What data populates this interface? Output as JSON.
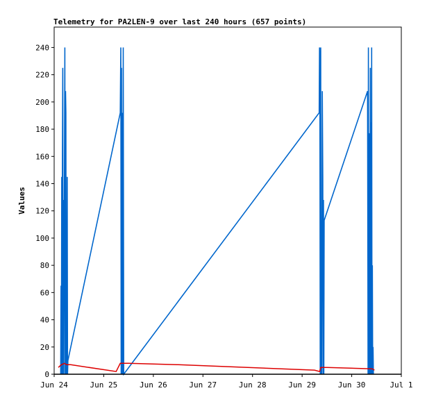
{
  "chart_data": {
    "type": "line",
    "title": "Telemetry for PA2LEN-9 over last 240 hours (657 points)",
    "xlabel": "",
    "ylabel": "Values",
    "ylim": [
      0,
      255
    ],
    "yticks": [
      0,
      20,
      40,
      60,
      80,
      100,
      120,
      140,
      160,
      180,
      200,
      220,
      240
    ],
    "xlim": [
      "2024-06-24T00:00",
      "2024-07-01T00:00"
    ],
    "xticks": [
      {
        "x": "2024-06-24T00:00",
        "label": "Jun 24"
      },
      {
        "x": "2024-06-25T00:00",
        "label": "Jun 25"
      },
      {
        "x": "2024-06-26T00:00",
        "label": "Jun 26"
      },
      {
        "x": "2024-06-27T00:00",
        "label": "Jun 27"
      },
      {
        "x": "2024-06-28T00:00",
        "label": "Jun 28"
      },
      {
        "x": "2024-06-29T00:00",
        "label": "Jun 29"
      },
      {
        "x": "2024-06-30T00:00",
        "label": "Jun 30"
      },
      {
        "x": "2024-07-01T00:00",
        "label": "Jul 1"
      }
    ],
    "grid": false,
    "legend": "none",
    "series": [
      {
        "color": "#0066cc",
        "points": [
          [
            "2024-06-24T03:10",
            0
          ],
          [
            "2024-06-24T03:20",
            65
          ],
          [
            "2024-06-24T03:30",
            0
          ],
          [
            "2024-06-24T03:40",
            145
          ],
          [
            "2024-06-24T03:50",
            0
          ],
          [
            "2024-06-24T04:00",
            160
          ],
          [
            "2024-06-24T04:10",
            225
          ],
          [
            "2024-06-24T04:20",
            0
          ],
          [
            "2024-06-24T04:30",
            128
          ],
          [
            "2024-06-24T04:40",
            0
          ],
          [
            "2024-06-24T05:10",
            240
          ],
          [
            "2024-06-24T05:20",
            0
          ],
          [
            "2024-06-24T05:30",
            208
          ],
          [
            "2024-06-24T05:40",
            192
          ],
          [
            "2024-06-24T05:50",
            0
          ],
          [
            "2024-06-24T06:00",
            37
          ],
          [
            "2024-06-24T06:10",
            0
          ],
          [
            "2024-06-24T06:20",
            145
          ],
          [
            "2024-06-24T06:30",
            0
          ],
          [
            "2024-06-24T06:40",
            10
          ],
          [
            "2024-06-25T08:00",
            192
          ],
          [
            "2024-06-25T08:15",
            240
          ],
          [
            "2024-06-25T08:25",
            0
          ],
          [
            "2024-06-25T08:35",
            225
          ],
          [
            "2024-06-25T08:45",
            0
          ],
          [
            "2024-06-25T09:00",
            192
          ],
          [
            "2024-06-25T09:10",
            0
          ],
          [
            "2024-06-25T09:25",
            240
          ],
          [
            "2024-06-25T09:40",
            0
          ],
          [
            "2024-06-29T08:15",
            192
          ],
          [
            "2024-06-29T08:25",
            240
          ],
          [
            "2024-06-29T08:35",
            225
          ],
          [
            "2024-06-29T08:45",
            0
          ],
          [
            "2024-06-29T09:00",
            240
          ],
          [
            "2024-06-29T09:10",
            0
          ],
          [
            "2024-06-29T09:20",
            113
          ],
          [
            "2024-06-29T09:30",
            0
          ],
          [
            "2024-06-29T09:45",
            208
          ],
          [
            "2024-06-29T10:00",
            145
          ],
          [
            "2024-06-29T10:10",
            0
          ],
          [
            "2024-06-29T10:20",
            128
          ],
          [
            "2024-06-29T10:30",
            0
          ],
          [
            "2024-06-29T10:40",
            113
          ],
          [
            "2024-06-30T07:40",
            208
          ],
          [
            "2024-06-30T07:55",
            0
          ],
          [
            "2024-06-30T08:05",
            240
          ],
          [
            "2024-06-30T08:15",
            0
          ],
          [
            "2024-06-30T08:25",
            177
          ],
          [
            "2024-06-30T08:35",
            145
          ],
          [
            "2024-06-30T08:45",
            0
          ],
          [
            "2024-06-30T09:00",
            225
          ],
          [
            "2024-06-30T09:10",
            0
          ],
          [
            "2024-06-30T09:20",
            185
          ],
          [
            "2024-06-30T09:30",
            0
          ],
          [
            "2024-06-30T09:40",
            240
          ],
          [
            "2024-06-30T09:50",
            0
          ],
          [
            "2024-06-30T10:00",
            80
          ],
          [
            "2024-06-30T10:10",
            0
          ],
          [
            "2024-06-30T10:20",
            20
          ],
          [
            "2024-06-30T10:30",
            0
          ]
        ]
      },
      {
        "color": "#dd0000",
        "points": [
          [
            "2024-06-24T02:00",
            5
          ],
          [
            "2024-06-24T03:30",
            7
          ],
          [
            "2024-06-24T05:00",
            8
          ],
          [
            "2024-06-24T06:00",
            7
          ],
          [
            "2024-06-24T08:00",
            7
          ],
          [
            "2024-06-25T06:00",
            2
          ],
          [
            "2024-06-25T08:00",
            8
          ],
          [
            "2024-06-25T12:00",
            8
          ],
          [
            "2024-06-26T12:00",
            7
          ],
          [
            "2024-06-29T06:00",
            3
          ],
          [
            "2024-06-29T08:30",
            2
          ],
          [
            "2024-06-29T09:00",
            5
          ],
          [
            "2024-06-29T12:00",
            5
          ],
          [
            "2024-06-30T10:00",
            4
          ],
          [
            "2024-06-30T11:00",
            3
          ]
        ]
      },
      {
        "color": "#000000",
        "points": [
          [
            "2024-06-24T00:00",
            0
          ],
          [
            "2024-07-01T00:00",
            0
          ]
        ]
      }
    ]
  }
}
